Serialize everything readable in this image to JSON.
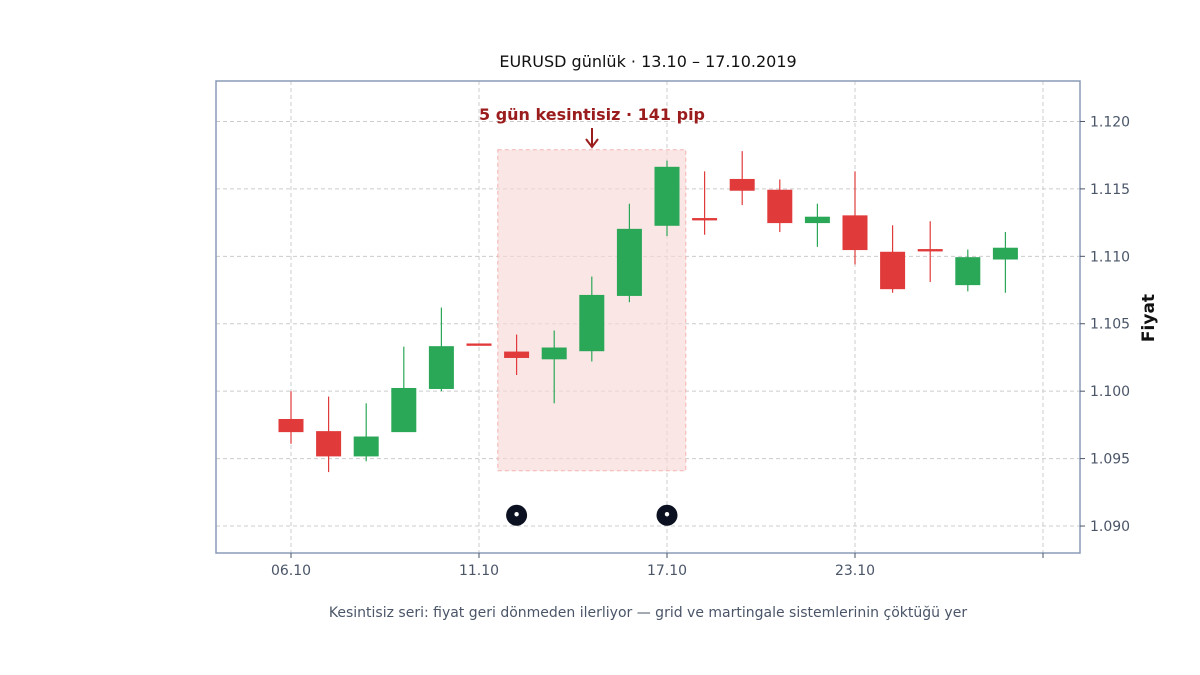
{
  "chart_data": {
    "type": "candlestick",
    "title": "EURUSD günlük · 13.10 – 17.10.2019",
    "caption": "Kesintisiz seri: fiyat geri dönmeden ilerliyor — grid ve martingale sistemlerinin çöktüğü yer",
    "xlabel": "",
    "ylabel": "Fiyat",
    "ylim": [
      1.088,
      1.123
    ],
    "yticks": [
      "1.090",
      "1.095",
      "1.100",
      "1.105",
      "1.110",
      "1.115",
      "1.120"
    ],
    "xticks": [
      "06.10",
      "11.10",
      "17.10",
      "23.10",
      ""
    ],
    "grid": true,
    "colors": {
      "up": "#2aa757",
      "down": "#e03a3a",
      "highlight": "#f9d9d9",
      "annotation": "#9b1c1c",
      "marker": "#0b1120"
    },
    "annotation": {
      "text": "5 gün kesintisiz · 141 pip"
    },
    "candles": [
      {
        "o": 1.0979,
        "h": 1.1,
        "l": 1.0961,
        "c": 1.097
      },
      {
        "o": 1.097,
        "h": 1.0996,
        "l": 1.094,
        "c": 1.0952
      },
      {
        "o": 1.0952,
        "h": 1.0991,
        "l": 1.0948,
        "c": 1.0966
      },
      {
        "o": 1.097,
        "h": 1.1033,
        "l": 1.097,
        "c": 1.1002
      },
      {
        "o": 1.1002,
        "h": 1.1062,
        "l": 1.1,
        "c": 1.1033
      },
      {
        "o": 1.1035,
        "h": 1.1035,
        "l": 1.1035,
        "c": 1.1034
      },
      {
        "o": 1.1029,
        "h": 1.1042,
        "l": 1.1012,
        "c": 1.1025
      },
      {
        "o": 1.1024,
        "h": 1.1045,
        "l": 1.0991,
        "c": 1.1032
      },
      {
        "o": 1.103,
        "h": 1.1085,
        "l": 1.1022,
        "c": 1.1071
      },
      {
        "o": 1.1071,
        "h": 1.1139,
        "l": 1.1066,
        "c": 1.112
      },
      {
        "o": 1.1123,
        "h": 1.1171,
        "l": 1.1115,
        "c": 1.1166
      },
      {
        "o": 1.1128,
        "h": 1.1163,
        "l": 1.1116,
        "c": 1.1127
      },
      {
        "o": 1.1157,
        "h": 1.1178,
        "l": 1.1138,
        "c": 1.1149
      },
      {
        "o": 1.1149,
        "h": 1.1157,
        "l": 1.1118,
        "c": 1.1125
      },
      {
        "o": 1.1125,
        "h": 1.1139,
        "l": 1.1107,
        "c": 1.1129
      },
      {
        "o": 1.113,
        "h": 1.1163,
        "l": 1.1094,
        "c": 1.1105
      },
      {
        "o": 1.1103,
        "h": 1.1123,
        "l": 1.1073,
        "c": 1.1076
      },
      {
        "o": 1.1105,
        "h": 1.1126,
        "l": 1.1081,
        "c": 1.1104
      },
      {
        "o": 1.1079,
        "h": 1.1105,
        "l": 1.1074,
        "c": 1.1099
      },
      {
        "o": 1.1098,
        "h": 1.1118,
        "l": 1.1073,
        "c": 1.1106
      }
    ],
    "highlight_range": {
      "from_index": 5.5,
      "to_index": 10.5,
      "low": 1.0941,
      "high": 1.1179
    },
    "markers": [
      {
        "index": 6,
        "y": 1.0908
      },
      {
        "index": 10,
        "y": 1.0908
      }
    ]
  }
}
